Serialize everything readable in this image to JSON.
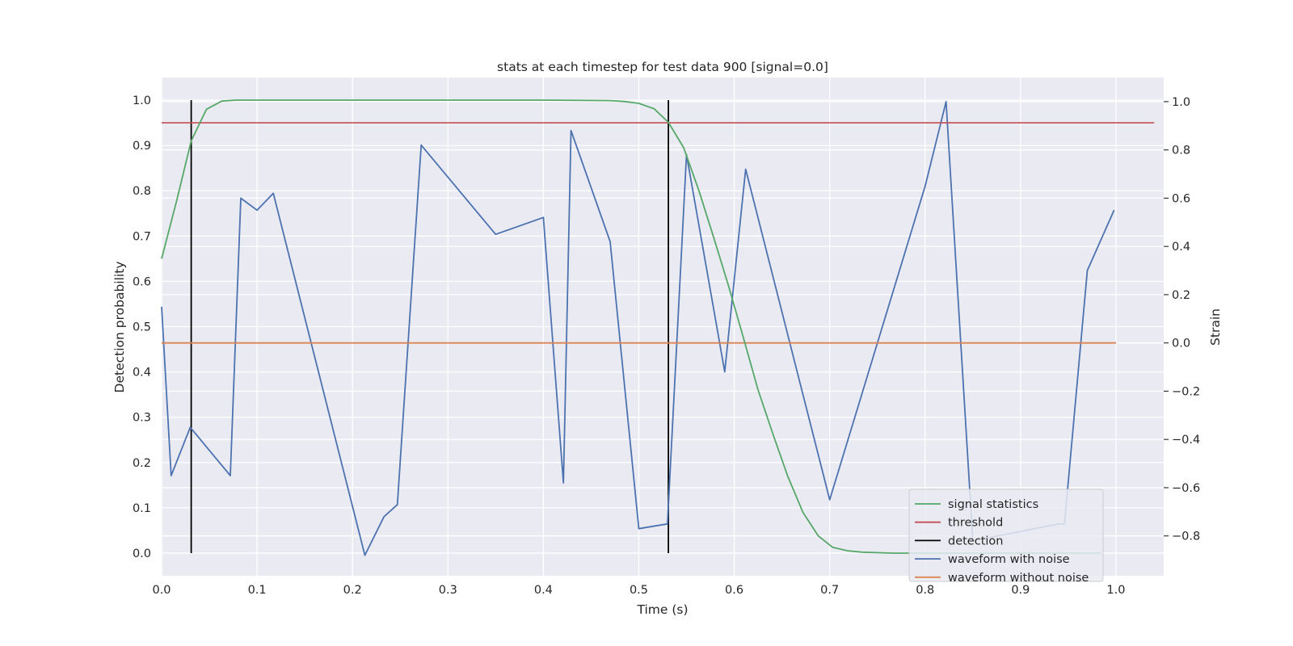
{
  "chart_data": {
    "type": "line",
    "title": "stats at each timestep for test data 900 [signal=0.0]",
    "xlabel": "Time (s)",
    "ylabel_left": "Detection probability",
    "ylabel_right": "Strain",
    "xlim": [
      0.0,
      1.05
    ],
    "ylim_left": [
      -0.05,
      1.05
    ],
    "ylim_right": [
      -0.965,
      1.1
    ],
    "x_ticks": [
      "0.0",
      "0.1",
      "0.2",
      "0.3",
      "0.4",
      "0.5",
      "0.6",
      "0.7",
      "0.8",
      "0.9",
      "1.0"
    ],
    "y_left_ticks": [
      "0.0",
      "0.1",
      "0.2",
      "0.3",
      "0.4",
      "0.5",
      "0.6",
      "0.7",
      "0.8",
      "0.9",
      "1.0"
    ],
    "y_right_ticks": [
      "−0.8",
      "−0.6",
      "−0.4",
      "−0.2",
      "0.0",
      "0.2",
      "0.4",
      "0.6",
      "0.8",
      "1.0"
    ],
    "grid": true,
    "legend_position": "lower-right",
    "series": [
      {
        "name": "signal statistics",
        "color": "#55a868",
        "axis": "left",
        "x": [
          0.0,
          0.016,
          0.031,
          0.047,
          0.063,
          0.078,
          0.094,
          0.11,
          0.2,
          0.3,
          0.4,
          0.47,
          0.485,
          0.5,
          0.516,
          0.531,
          0.547,
          0.563,
          0.578,
          0.594,
          0.609,
          0.625,
          0.641,
          0.656,
          0.672,
          0.688,
          0.703,
          0.719,
          0.734,
          0.75,
          0.766,
          0.781,
          0.797,
          0.8,
          0.85,
          0.9,
          0.95,
          0.984
        ],
        "y": [
          0.65,
          0.78,
          0.91,
          0.98,
          0.998,
          1.0,
          1.0,
          1.0,
          1.0,
          1.0,
          1.0,
          0.999,
          0.997,
          0.993,
          0.981,
          0.951,
          0.895,
          0.8,
          0.7,
          0.59,
          0.48,
          0.36,
          0.26,
          0.17,
          0.09,
          0.038,
          0.013,
          0.005,
          0.002,
          0.001,
          0.0,
          0.0,
          0.0,
          0.0,
          0.0,
          0.0,
          0.0,
          0.0
        ]
      },
      {
        "name": "threshold",
        "color": "#c44e52",
        "axis": "left",
        "x": [
          0.0,
          1.04
        ],
        "y": [
          0.95,
          0.95
        ]
      },
      {
        "name": "detection",
        "color": "#000000",
        "axis": "left",
        "x": [
          0.031,
          0.531
        ],
        "y": [
          0.0,
          1.0
        ]
      },
      {
        "name": "waveform with noise",
        "color": "#4c72b0",
        "axis": "right",
        "x": [
          0.0,
          0.01,
          0.03,
          0.072,
          0.083,
          0.1,
          0.117,
          0.213,
          0.233,
          0.247,
          0.272,
          0.35,
          0.4,
          0.421,
          0.429,
          0.47,
          0.5,
          0.53,
          0.55,
          0.59,
          0.612,
          0.7,
          0.8,
          0.822,
          0.85,
          0.94,
          0.946,
          0.97,
          0.998
        ],
        "y": [
          0.15,
          -0.55,
          -0.35,
          -0.55,
          0.6,
          0.55,
          0.62,
          -0.88,
          -0.72,
          -0.67,
          0.82,
          0.45,
          0.52,
          -0.58,
          0.88,
          0.42,
          -0.77,
          -0.75,
          0.78,
          -0.12,
          0.72,
          -0.65,
          0.65,
          1.0,
          -0.82,
          -0.75,
          -0.75,
          0.3,
          0.55
        ]
      },
      {
        "name": "waveform without noise",
        "color": "#dd8452",
        "axis": "right",
        "x": [
          0.0,
          1.0
        ],
        "y": [
          0.0,
          0.0
        ]
      }
    ]
  }
}
